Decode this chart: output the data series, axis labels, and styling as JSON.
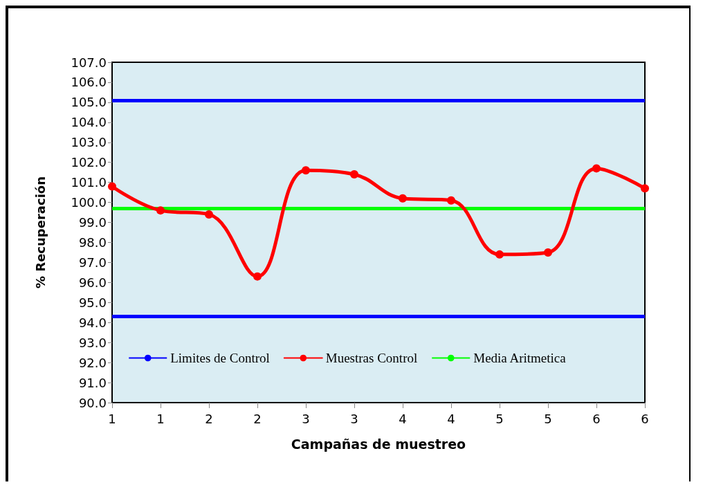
{
  "chart_data": {
    "type": "line",
    "xlabel": "Campañas de muestreo",
    "ylabel": "% Recuperación",
    "categories": [
      "1",
      "1",
      "2",
      "2",
      "3",
      "3",
      "4",
      "4",
      "5",
      "5",
      "6",
      "6"
    ],
    "series": [
      {
        "name": "Muestras Control",
        "color": "#ff0000",
        "values": [
          100.8,
          99.6,
          99.4,
          96.3,
          101.6,
          101.4,
          100.2,
          100.1,
          97.4,
          97.5,
          101.7,
          100.7
        ]
      }
    ],
    "ylim": [
      90,
      107
    ],
    "yticks": [
      {
        "value": 90,
        "label": "90.0"
      },
      {
        "value": 91,
        "label": "91.0"
      },
      {
        "value": 92,
        "label": "92.0"
      },
      {
        "value": 93,
        "label": "93.0"
      },
      {
        "value": 94,
        "label": "94.0"
      },
      {
        "value": 95,
        "label": "95.0"
      },
      {
        "value": 96,
        "label": "96.0"
      },
      {
        "value": 97,
        "label": "97.0"
      },
      {
        "value": 98,
        "label": "98.0"
      },
      {
        "value": 99,
        "label": "99.0"
      },
      {
        "value": 100,
        "label": "100.0"
      },
      {
        "value": 101,
        "label": "101.0"
      },
      {
        "value": 102,
        "label": "102.0"
      },
      {
        "value": 103,
        "label": "103.0"
      },
      {
        "value": 104,
        "label": "104.0"
      },
      {
        "value": 105,
        "label": "105.0"
      },
      {
        "value": 106,
        "label": "106.0"
      },
      {
        "value": 107,
        "label": "107.0"
      }
    ],
    "ref_lines": [
      {
        "axis": "y",
        "value": 105.1,
        "label": "Limites de Control",
        "color": "#0000ff"
      },
      {
        "axis": "y",
        "value": 94.3,
        "color": "#0000ff"
      },
      {
        "axis": "y",
        "value": 99.7,
        "label": "Media Aritmetica",
        "color": "#00ff00"
      }
    ],
    "marker": "circle",
    "line_style": "solid",
    "grid": false,
    "legend": "bottom"
  }
}
